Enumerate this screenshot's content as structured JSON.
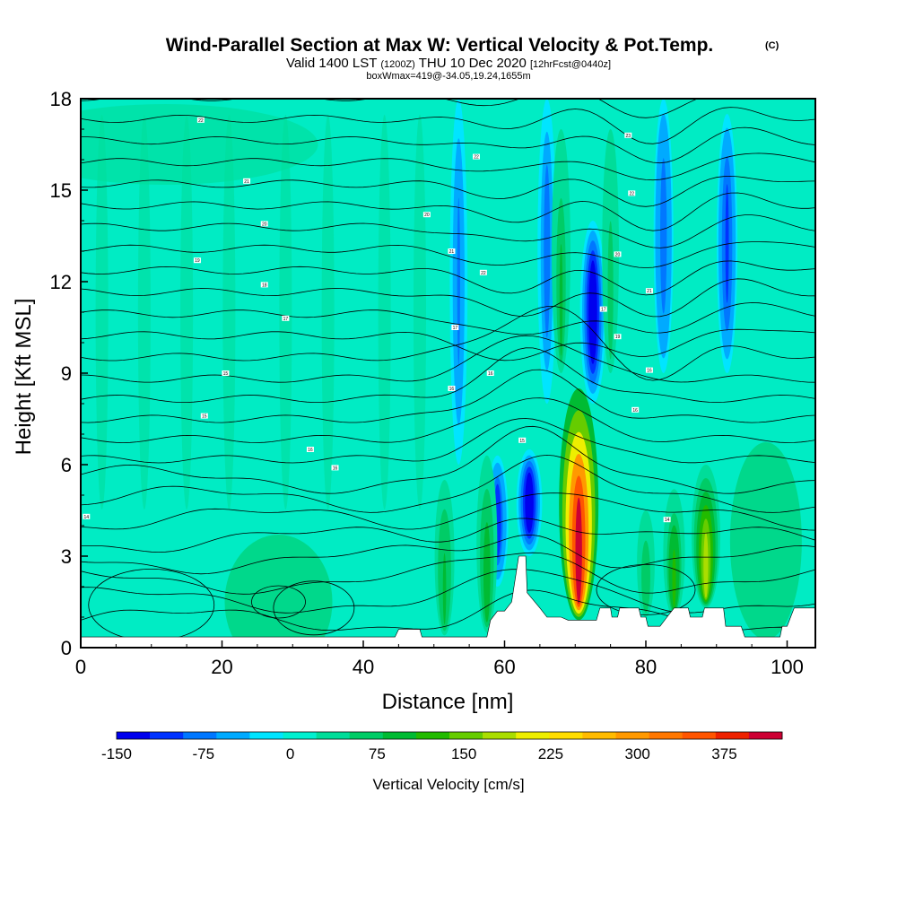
{
  "chart_data": {
    "type": "heatmap",
    "title_main": "Wind-Parallel Section at Max W: Vertical Velocity & Pot.Temp.",
    "title_mark": "(C)",
    "subtitle_a": "Valid 1400 LST",
    "subtitle_b": "(1200Z)",
    "subtitle_c": "THU 10 Dec 2020",
    "subtitle_d": "[12hrFcst@0440z]",
    "boxinfo": "boxWmax=419@-34.05,19.24,1655m",
    "xlabel": "Distance [nm]",
    "ylabel": "Height [Kft MSL]",
    "xlim": [
      0,
      104
    ],
    "ylim": [
      0,
      18
    ],
    "xticks": [
      "0",
      "20",
      "40",
      "60",
      "80",
      "100"
    ],
    "yticks": [
      "0",
      "3",
      "6",
      "9",
      "12",
      "15",
      "18"
    ],
    "xtick_values": [
      0,
      20,
      40,
      60,
      80,
      100
    ],
    "ytick_values": [
      0,
      3,
      6,
      9,
      12,
      15,
      18
    ],
    "colorbar_label": "Vertical Velocity [cm/s]",
    "colorbar_ticks": [
      "-150",
      "-75",
      "0",
      "75",
      "150",
      "225",
      "300",
      "375"
    ],
    "colorbar_tick_values": [
      -150,
      -75,
      0,
      75,
      150,
      225,
      300,
      375
    ],
    "colorbar_range": [
      -150,
      425
    ],
    "colorbar_colors": [
      "#0000ee",
      "#0033ff",
      "#0077ff",
      "#00aaff",
      "#00e5ff",
      "#00f0d0",
      "#00dd99",
      "#00cc66",
      "#00bb33",
      "#22bb00",
      "#66cc00",
      "#aadd00",
      "#eeee00",
      "#ffdd00",
      "#ffbb00",
      "#ff9900",
      "#ff7700",
      "#ff5500",
      "#ee2200",
      "#cc0033"
    ],
    "max_vertical_velocity_cm_s": 419,
    "terrain": [
      [
        0,
        0.35
      ],
      [
        44.5,
        0.35
      ],
      [
        45,
        0.6
      ],
      [
        48,
        0.6
      ],
      [
        48.3,
        0.35
      ],
      [
        57.5,
        0.35
      ],
      [
        58,
        0.9
      ],
      [
        59,
        1.2
      ],
      [
        60,
        1.2
      ],
      [
        61,
        1.5
      ],
      [
        62,
        3
      ],
      [
        63,
        3
      ],
      [
        63.2,
        1.8
      ],
      [
        65,
        1.3
      ],
      [
        66,
        1.0
      ],
      [
        68,
        1.0
      ],
      [
        69,
        0.9
      ],
      [
        73,
        0.9
      ],
      [
        73.5,
        1.3
      ],
      [
        75,
        1.3
      ],
      [
        75.2,
        1.0
      ],
      [
        76,
        1.0
      ],
      [
        76.3,
        1.3
      ],
      [
        79,
        1.3
      ],
      [
        79.3,
        1.0
      ],
      [
        80,
        1.0
      ],
      [
        80.3,
        0.7
      ],
      [
        82,
        0.7
      ],
      [
        83,
        1.0
      ],
      [
        84,
        1.3
      ],
      [
        86,
        1.3
      ],
      [
        86.3,
        1.0
      ],
      [
        88,
        1.0
      ],
      [
        88.3,
        1.3
      ],
      [
        91,
        1.3
      ],
      [
        91.3,
        0.7
      ],
      [
        93.5,
        0.7
      ],
      [
        94,
        0.35
      ],
      [
        99,
        0.35
      ],
      [
        99.3,
        0.7
      ],
      [
        100,
        0.7
      ],
      [
        100.5,
        1.0
      ],
      [
        101,
        1.3
      ],
      [
        104,
        1.3
      ]
    ],
    "updrafts": [
      {
        "x": 70.5,
        "top": 8.5,
        "bottom": 0.9,
        "peak": 419
      },
      {
        "x": 88.5,
        "top": 6.0,
        "bottom": 1.3,
        "peak": 180
      },
      {
        "x": 57.5,
        "top": 6.3,
        "bottom": 0.5,
        "peak": 100
      },
      {
        "x": 51.5,
        "top": 5.5,
        "bottom": 0.4,
        "peak": 90
      },
      {
        "x": 84,
        "top": 5.2,
        "bottom": 1.0,
        "peak": 110
      },
      {
        "x": 80,
        "top": 4.5,
        "bottom": 1.0,
        "peak": 70
      },
      {
        "x": 68,
        "top": 17,
        "bottom": 9,
        "peak": 80
      },
      {
        "x": 75,
        "top": 17,
        "bottom": 9,
        "peak": 60
      }
    ],
    "downdrafts": [
      {
        "x": 63.5,
        "top": 6.5,
        "bottom": 3.0,
        "peak": -150
      },
      {
        "x": 59,
        "top": 6.3,
        "bottom": 2.0,
        "peak": -110
      },
      {
        "x": 72.5,
        "top": 14,
        "bottom": 8,
        "peak": -150
      },
      {
        "x": 91.5,
        "top": 17.5,
        "bottom": 9,
        "peak": -100
      },
      {
        "x": 66,
        "top": 18,
        "bottom": 8,
        "peak": -80
      },
      {
        "x": 82.5,
        "top": 18,
        "bottom": 9,
        "peak": -90
      },
      {
        "x": 53.5,
        "top": 18,
        "bottom": 6,
        "peak": -70
      }
    ],
    "theta_labels": [
      {
        "text": "14",
        "x": 0.8,
        "y": 4.3
      },
      {
        "text": "15",
        "x": 17.5,
        "y": 7.6
      },
      {
        "text": "15",
        "x": 20.5,
        "y": 9.0
      },
      {
        "text": "16",
        "x": 32.5,
        "y": 6.5
      },
      {
        "text": "16",
        "x": 36,
        "y": 5.9
      },
      {
        "text": "17",
        "x": 29,
        "y": 10.8
      },
      {
        "text": "18",
        "x": 26,
        "y": 11.9
      },
      {
        "text": "19",
        "x": 16.5,
        "y": 12.7
      },
      {
        "text": "20",
        "x": 26,
        "y": 13.9
      },
      {
        "text": "21",
        "x": 23.5,
        "y": 15.3
      },
      {
        "text": "22",
        "x": 17,
        "y": 17.3
      },
      {
        "text": "20",
        "x": 49,
        "y": 14.2
      },
      {
        "text": "21",
        "x": 52.5,
        "y": 13.0
      },
      {
        "text": "22",
        "x": 56,
        "y": 16.1
      },
      {
        "text": "22",
        "x": 57,
        "y": 12.3
      },
      {
        "text": "17",
        "x": 53,
        "y": 10.5
      },
      {
        "text": "16",
        "x": 52.5,
        "y": 8.5
      },
      {
        "text": "16",
        "x": 58,
        "y": 9.0
      },
      {
        "text": "15",
        "x": 62.5,
        "y": 6.8
      },
      {
        "text": "17",
        "x": 74,
        "y": 11.1
      },
      {
        "text": "19",
        "x": 76,
        "y": 10.2
      },
      {
        "text": "20",
        "x": 76,
        "y": 12.9
      },
      {
        "text": "21",
        "x": 80.5,
        "y": 11.7
      },
      {
        "text": "22",
        "x": 78,
        "y": 14.9
      },
      {
        "text": "23",
        "x": 77.5,
        "y": 16.8
      },
      {
        "text": "16",
        "x": 80.5,
        "y": 9.1
      },
      {
        "text": "16",
        "x": 78.5,
        "y": 7.8
      },
      {
        "text": "14",
        "x": 83,
        "y": 4.2
      }
    ]
  }
}
